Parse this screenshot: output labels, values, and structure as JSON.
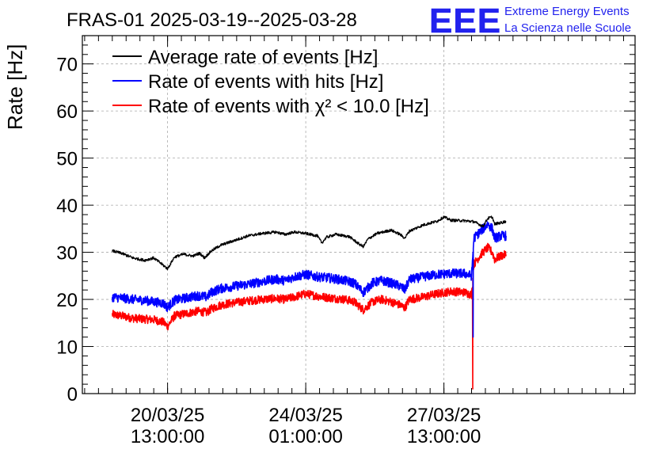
{
  "chart_data": {
    "type": "line",
    "title": "FRAS-01 2025-03-19--2025-03-28",
    "ylabel": "Rate [Hz]",
    "xlabel": "",
    "ylim": [
      0,
      76
    ],
    "yticks": [
      0,
      10,
      20,
      30,
      40,
      50,
      60,
      70
    ],
    "xlim_hours": [
      0,
      240
    ],
    "xticks": [
      {
        "hour": 37,
        "date": "20/03/25",
        "time": "13:00:00"
      },
      {
        "hour": 97,
        "date": "24/03/25",
        "time": "01:00:00"
      },
      {
        "hour": 157,
        "date": "27/03/25",
        "time": "13:00:00"
      }
    ],
    "grid": true,
    "legend_position": "top-left",
    "series": [
      {
        "name": "Average rate of events [Hz]",
        "color": "#000000",
        "noise": 0.3,
        "points": [
          [
            13,
            30.3
          ],
          [
            17,
            29.8
          ],
          [
            22,
            28.8
          ],
          [
            27,
            28.3
          ],
          [
            31,
            28.8
          ],
          [
            35,
            27.3
          ],
          [
            37,
            26.5
          ],
          [
            40,
            29.0
          ],
          [
            44,
            29.6
          ],
          [
            48,
            29.2
          ],
          [
            51,
            29.8
          ],
          [
            53,
            28.8
          ],
          [
            56,
            30.3
          ],
          [
            60,
            31.5
          ],
          [
            66,
            32.5
          ],
          [
            72,
            33.5
          ],
          [
            78,
            34.0
          ],
          [
            84,
            34.3
          ],
          [
            88,
            33.8
          ],
          [
            92,
            34.3
          ],
          [
            97,
            34.0
          ],
          [
            102,
            33.5
          ],
          [
            104,
            32.0
          ],
          [
            106,
            33.2
          ],
          [
            110,
            33.8
          ],
          [
            116,
            33.3
          ],
          [
            120,
            31.8
          ],
          [
            122,
            31.2
          ],
          [
            124,
            32.8
          ],
          [
            128,
            34.0
          ],
          [
            134,
            34.7
          ],
          [
            138,
            33.8
          ],
          [
            140,
            33.0
          ],
          [
            142,
            34.5
          ],
          [
            148,
            35.8
          ],
          [
            154,
            36.6
          ],
          [
            157,
            37.5
          ],
          [
            160,
            36.8
          ],
          [
            166,
            36.7
          ],
          [
            170,
            36.5
          ],
          [
            172,
            36.0
          ],
          [
            174,
            35.5
          ],
          [
            176,
            37.2
          ],
          [
            178,
            37.5
          ],
          [
            179,
            36.0
          ],
          [
            182,
            36.3
          ],
          [
            184,
            36.6
          ]
        ]
      },
      {
        "name": "Rate of events with hits [Hz]",
        "color": "#0000ff",
        "noise": 1.0,
        "points": [
          [
            13,
            20.5
          ],
          [
            17,
            20.3
          ],
          [
            22,
            20.0
          ],
          [
            27,
            19.8
          ],
          [
            31,
            19.5
          ],
          [
            35,
            19.2
          ],
          [
            37,
            18.3
          ],
          [
            40,
            19.8
          ],
          [
            45,
            20.3
          ],
          [
            50,
            20.8
          ],
          [
            54,
            20.5
          ],
          [
            56,
            21.5
          ],
          [
            60,
            22.3
          ],
          [
            66,
            22.8
          ],
          [
            72,
            23.2
          ],
          [
            78,
            23.8
          ],
          [
            84,
            24.3
          ],
          [
            88,
            24.0
          ],
          [
            92,
            24.8
          ],
          [
            97,
            25.3
          ],
          [
            102,
            24.8
          ],
          [
            108,
            24.5
          ],
          [
            114,
            24.0
          ],
          [
            118,
            23.5
          ],
          [
            122,
            21.5
          ],
          [
            126,
            23.5
          ],
          [
            130,
            24.0
          ],
          [
            134,
            23.5
          ],
          [
            138,
            22.8
          ],
          [
            140,
            22.0
          ],
          [
            142,
            24.2
          ],
          [
            148,
            24.8
          ],
          [
            154,
            25.3
          ],
          [
            160,
            25.5
          ],
          [
            166,
            25.5
          ],
          [
            169,
            25.0
          ],
          [
            170,
            33.0
          ],
          [
            173,
            34.5
          ],
          [
            176,
            36.0
          ],
          [
            178,
            35.0
          ],
          [
            179,
            33.0
          ],
          [
            182,
            33.5
          ],
          [
            184,
            33.5
          ]
        ]
      },
      {
        "name": "Rate of events with χ² < 10.0 [Hz]",
        "color": "#ff0000",
        "noise": 0.9,
        "points": [
          [
            13,
            16.8
          ],
          [
            17,
            16.5
          ],
          [
            22,
            16.0
          ],
          [
            27,
            15.8
          ],
          [
            31,
            15.7
          ],
          [
            35,
            15.2
          ],
          [
            37,
            14.3
          ],
          [
            40,
            16.5
          ],
          [
            45,
            17.0
          ],
          [
            50,
            17.5
          ],
          [
            54,
            17.2
          ],
          [
            56,
            18.0
          ],
          [
            60,
            18.8
          ],
          [
            66,
            19.3
          ],
          [
            72,
            19.7
          ],
          [
            78,
            20.0
          ],
          [
            84,
            20.2
          ],
          [
            88,
            20.0
          ],
          [
            92,
            20.5
          ],
          [
            97,
            21.2
          ],
          [
            102,
            20.7
          ],
          [
            108,
            20.3
          ],
          [
            114,
            20.0
          ],
          [
            118,
            19.5
          ],
          [
            122,
            17.8
          ],
          [
            126,
            19.5
          ],
          [
            130,
            20.0
          ],
          [
            134,
            19.5
          ],
          [
            138,
            18.8
          ],
          [
            140,
            18.2
          ],
          [
            142,
            20.0
          ],
          [
            148,
            20.5
          ],
          [
            154,
            21.2
          ],
          [
            160,
            21.7
          ],
          [
            166,
            21.5
          ],
          [
            169,
            21.0
          ],
          [
            170,
            27.5
          ],
          [
            173,
            29.5
          ],
          [
            176,
            31.0
          ],
          [
            178,
            30.0
          ],
          [
            179,
            28.5
          ],
          [
            182,
            29.3
          ],
          [
            184,
            29.5
          ]
        ]
      }
    ],
    "spikes": [
      {
        "series": 2,
        "hour": 169.5,
        "value": 1.0
      },
      {
        "series": 1,
        "hour": 169.7,
        "value": 12.0
      }
    ]
  },
  "logo": {
    "mark": "EEE",
    "line1": "Extreme Energy Events",
    "line2": "La Scienza nelle Scuole",
    "color": "#2222ee"
  }
}
